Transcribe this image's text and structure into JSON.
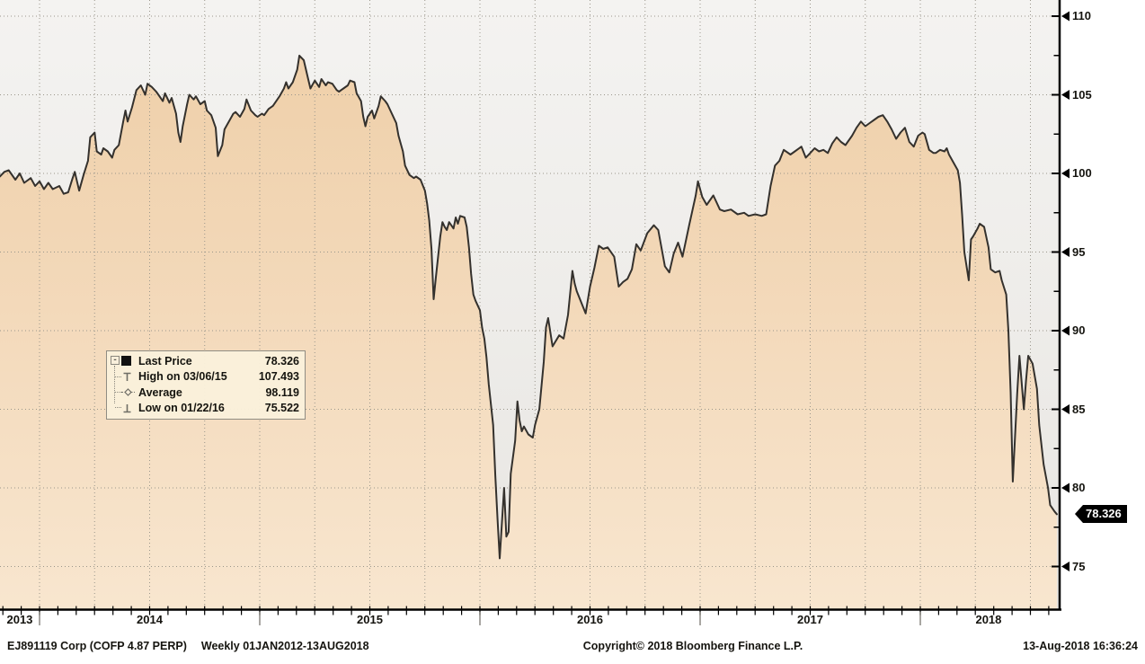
{
  "window": {
    "app": "Bloomberg chart"
  },
  "chart": {
    "security": "EJ891119 Corp (COFP 4.87 PERP)",
    "period_text": "Weekly 01JAN2012-13AUG2018",
    "last_price_label": "78.326",
    "y_axis": {
      "min": 75,
      "max": 110,
      "major_step": 5,
      "minor_step": 2.5,
      "tick_labels": [
        "110",
        "105",
        "100",
        "95",
        "90",
        "85",
        "80",
        "75"
      ]
    },
    "x_axis": {
      "year_labels": [
        {
          "label": "2013",
          "center": 2013.91
        },
        {
          "label": "2014",
          "center": 2014.5
        },
        {
          "label": "2015",
          "center": 2015.5
        },
        {
          "label": "2016",
          "center": 2016.5
        },
        {
          "label": "2017",
          "center": 2017.5
        },
        {
          "label": "2018",
          "center": 2018.31
        }
      ],
      "boundaries": [
        2014,
        2015,
        2016,
        2017,
        2018
      ],
      "minor_ticks": "monthly",
      "gridlines": "quarterly"
    },
    "legend": {
      "collapse_glyph": "-",
      "rows": [
        {
          "icon": "last-price-swatch",
          "label": "Last Price",
          "value": "78.326"
        },
        {
          "icon": "high-marker",
          "label": "High on 03/06/15",
          "value": "107.493"
        },
        {
          "icon": "average-marker",
          "label": "Average",
          "value": "98.119"
        },
        {
          "icon": "low-marker",
          "label": "Low on 01/22/16",
          "value": "75.522"
        }
      ]
    },
    "footer": {
      "copyright": "Copyright© 2018 Bloomberg Finance L.P.",
      "timestamp": "13-Aug-2018 16:36:24"
    }
  },
  "colors": {
    "area_top": "#efd0aa",
    "area_mid": "#f3d9ba",
    "area_bottom": "#f8e6cf",
    "line": "#34312d",
    "plot_bg_top": "#f4f3f1",
    "plot_bg_bottom": "#e8e6e2",
    "grid": "#9a968b",
    "axis": "#000000",
    "price_tag_bg": "#000000",
    "price_tag_text": "#ffffff",
    "legend_bg": "#f9efdb",
    "legend_border": "#8f8c83",
    "marker_gray": "#6f6e66",
    "text": "#15140f"
  },
  "chart_data": {
    "type": "area",
    "title": "",
    "series_name": "Last Price",
    "x_unit": "decimal_year",
    "xlim": [
      2013.82,
      2018.63
    ],
    "ylim": [
      74,
      110.5
    ],
    "y_ticks": [
      75,
      80,
      85,
      90,
      95,
      100,
      105,
      110
    ],
    "grid": "dotted",
    "legend_position": "left-middle",
    "stats": {
      "last": 78.326,
      "high": {
        "date": "03/06/15",
        "value": 107.493
      },
      "average": 98.119,
      "low": {
        "date": "01/22/16",
        "value": 75.522
      }
    },
    "points": [
      [
        2013.82,
        99.8
      ],
      [
        2013.84,
        100.1
      ],
      [
        2013.86,
        100.2
      ],
      [
        2013.89,
        99.6
      ],
      [
        2013.91,
        100.0
      ],
      [
        2013.93,
        99.4
      ],
      [
        2013.96,
        99.7
      ],
      [
        2013.98,
        99.2
      ],
      [
        2014.0,
        99.5
      ],
      [
        2014.02,
        99.0
      ],
      [
        2014.04,
        99.4
      ],
      [
        2014.06,
        99.0
      ],
      [
        2014.09,
        99.2
      ],
      [
        2014.11,
        98.7
      ],
      [
        2014.13,
        98.8
      ],
      [
        2014.15,
        99.7
      ],
      [
        2014.16,
        100.1
      ],
      [
        2014.18,
        98.9
      ],
      [
        2014.2,
        99.9
      ],
      [
        2014.22,
        100.8
      ],
      [
        2014.23,
        102.3
      ],
      [
        2014.25,
        102.6
      ],
      [
        2014.26,
        101.4
      ],
      [
        2014.28,
        101.2
      ],
      [
        2014.29,
        101.6
      ],
      [
        2014.31,
        101.4
      ],
      [
        2014.33,
        101.0
      ],
      [
        2014.34,
        101.5
      ],
      [
        2014.36,
        101.8
      ],
      [
        2014.38,
        103.3
      ],
      [
        2014.39,
        104.0
      ],
      [
        2014.4,
        103.3
      ],
      [
        2014.42,
        104.2
      ],
      [
        2014.44,
        105.3
      ],
      [
        2014.46,
        105.6
      ],
      [
        2014.48,
        105.0
      ],
      [
        2014.49,
        105.7
      ],
      [
        2014.51,
        105.5
      ],
      [
        2014.53,
        105.2
      ],
      [
        2014.54,
        105.0
      ],
      [
        2014.56,
        104.6
      ],
      [
        2014.57,
        105.1
      ],
      [
        2014.59,
        104.5
      ],
      [
        2014.6,
        104.8
      ],
      [
        2014.62,
        103.8
      ],
      [
        2014.63,
        102.6
      ],
      [
        2014.64,
        102.0
      ],
      [
        2014.65,
        103.0
      ],
      [
        2014.67,
        104.4
      ],
      [
        2014.68,
        105.0
      ],
      [
        2014.7,
        104.7
      ],
      [
        2014.71,
        104.9
      ],
      [
        2014.73,
        104.4
      ],
      [
        2014.75,
        104.6
      ],
      [
        2014.76,
        104.0
      ],
      [
        2014.78,
        103.7
      ],
      [
        2014.8,
        102.9
      ],
      [
        2014.81,
        101.1
      ],
      [
        2014.83,
        101.8
      ],
      [
        2014.84,
        102.8
      ],
      [
        2014.86,
        103.3
      ],
      [
        2014.88,
        103.8
      ],
      [
        2014.89,
        103.9
      ],
      [
        2014.91,
        103.6
      ],
      [
        2014.93,
        104.1
      ],
      [
        2014.94,
        104.7
      ],
      [
        2014.96,
        104.0
      ],
      [
        2014.98,
        103.7
      ],
      [
        2014.99,
        103.6
      ],
      [
        2015.01,
        103.8
      ],
      [
        2015.02,
        103.7
      ],
      [
        2015.04,
        104.1
      ],
      [
        2015.06,
        104.3
      ],
      [
        2015.07,
        104.5
      ],
      [
        2015.09,
        104.9
      ],
      [
        2015.11,
        105.4
      ],
      [
        2015.12,
        105.8
      ],
      [
        2015.13,
        105.4
      ],
      [
        2015.15,
        105.8
      ],
      [
        2015.17,
        106.6
      ],
      [
        2015.18,
        107.49
      ],
      [
        2015.2,
        107.2
      ],
      [
        2015.22,
        106.0
      ],
      [
        2015.23,
        105.4
      ],
      [
        2015.25,
        105.9
      ],
      [
        2015.27,
        105.5
      ],
      [
        2015.28,
        106.0
      ],
      [
        2015.3,
        105.6
      ],
      [
        2015.31,
        105.8
      ],
      [
        2015.33,
        105.7
      ],
      [
        2015.35,
        105.3
      ],
      [
        2015.36,
        105.2
      ],
      [
        2015.38,
        105.4
      ],
      [
        2015.4,
        105.6
      ],
      [
        2015.41,
        105.9
      ],
      [
        2015.43,
        105.8
      ],
      [
        2015.44,
        105.1
      ],
      [
        2015.46,
        104.6
      ],
      [
        2015.47,
        103.6
      ],
      [
        2015.48,
        103.0
      ],
      [
        2015.49,
        103.6
      ],
      [
        2015.51,
        104.0
      ],
      [
        2015.52,
        103.5
      ],
      [
        2015.54,
        104.3
      ],
      [
        2015.55,
        104.9
      ],
      [
        2015.57,
        104.6
      ],
      [
        2015.58,
        104.4
      ],
      [
        2015.6,
        103.8
      ],
      [
        2015.62,
        103.2
      ],
      [
        2015.63,
        102.4
      ],
      [
        2015.65,
        101.4
      ],
      [
        2015.66,
        100.5
      ],
      [
        2015.68,
        99.9
      ],
      [
        2015.7,
        99.7
      ],
      [
        2015.71,
        99.8
      ],
      [
        2015.73,
        99.6
      ],
      [
        2015.75,
        98.9
      ],
      [
        2015.76,
        98.1
      ],
      [
        2015.77,
        97.0
      ],
      [
        2015.78,
        95.2
      ],
      [
        2015.79,
        92.0
      ],
      [
        2015.8,
        93.4
      ],
      [
        2015.82,
        96.0
      ],
      [
        2015.83,
        96.9
      ],
      [
        2015.84,
        96.6
      ],
      [
        2015.85,
        96.4
      ],
      [
        2015.86,
        96.9
      ],
      [
        2015.88,
        96.5
      ],
      [
        2015.89,
        97.2
      ],
      [
        2015.9,
        96.8
      ],
      [
        2015.91,
        97.3
      ],
      [
        2015.93,
        97.2
      ],
      [
        2015.94,
        96.6
      ],
      [
        2015.95,
        95.3
      ],
      [
        2015.96,
        93.6
      ],
      [
        2015.97,
        92.3
      ],
      [
        2015.98,
        91.9
      ],
      [
        2016.0,
        91.3
      ],
      [
        2016.01,
        90.2
      ],
      [
        2016.02,
        89.5
      ],
      [
        2016.03,
        88.3
      ],
      [
        2016.04,
        86.6
      ],
      [
        2016.06,
        84.0
      ],
      [
        2016.07,
        80.8
      ],
      [
        2016.08,
        78.0
      ],
      [
        2016.09,
        75.52
      ],
      [
        2016.11,
        80.0
      ],
      [
        2016.12,
        76.9
      ],
      [
        2016.13,
        77.2
      ],
      [
        2016.14,
        80.9
      ],
      [
        2016.16,
        83.0
      ],
      [
        2016.17,
        85.5
      ],
      [
        2016.18,
        84.3
      ],
      [
        2016.19,
        83.6
      ],
      [
        2016.2,
        83.9
      ],
      [
        2016.22,
        83.4
      ],
      [
        2016.24,
        83.2
      ],
      [
        2016.25,
        84.0
      ],
      [
        2016.27,
        85.0
      ],
      [
        2016.29,
        88.0
      ],
      [
        2016.3,
        90.2
      ],
      [
        2016.31,
        90.8
      ],
      [
        2016.33,
        89.0
      ],
      [
        2016.36,
        89.7
      ],
      [
        2016.38,
        89.5
      ],
      [
        2016.4,
        91.0
      ],
      [
        2016.42,
        93.8
      ],
      [
        2016.43,
        93.0
      ],
      [
        2016.44,
        92.5
      ],
      [
        2016.46,
        91.8
      ],
      [
        2016.48,
        91.1
      ],
      [
        2016.5,
        92.8
      ],
      [
        2016.52,
        94.0
      ],
      [
        2016.54,
        95.4
      ],
      [
        2016.56,
        95.2
      ],
      [
        2016.58,
        95.3
      ],
      [
        2016.61,
        94.7
      ],
      [
        2016.63,
        92.8
      ],
      [
        2016.65,
        93.1
      ],
      [
        2016.67,
        93.3
      ],
      [
        2016.69,
        93.9
      ],
      [
        2016.71,
        95.5
      ],
      [
        2016.73,
        95.1
      ],
      [
        2016.76,
        96.2
      ],
      [
        2016.79,
        96.7
      ],
      [
        2016.81,
        96.4
      ],
      [
        2016.84,
        94.1
      ],
      [
        2016.86,
        93.7
      ],
      [
        2016.88,
        94.9
      ],
      [
        2016.9,
        95.6
      ],
      [
        2016.92,
        94.7
      ],
      [
        2016.95,
        96.7
      ],
      [
        2016.98,
        98.6
      ],
      [
        2016.99,
        99.5
      ],
      [
        2017.01,
        98.5
      ],
      [
        2017.03,
        98.0
      ],
      [
        2017.06,
        98.6
      ],
      [
        2017.09,
        97.7
      ],
      [
        2017.11,
        97.6
      ],
      [
        2017.14,
        97.7
      ],
      [
        2017.17,
        97.4
      ],
      [
        2017.2,
        97.5
      ],
      [
        2017.22,
        97.3
      ],
      [
        2017.25,
        97.4
      ],
      [
        2017.28,
        97.3
      ],
      [
        2017.3,
        97.4
      ],
      [
        2017.32,
        99.2
      ],
      [
        2017.34,
        100.5
      ],
      [
        2017.36,
        100.8
      ],
      [
        2017.38,
        101.5
      ],
      [
        2017.41,
        101.2
      ],
      [
        2017.43,
        101.4
      ],
      [
        2017.46,
        101.7
      ],
      [
        2017.48,
        101.0
      ],
      [
        2017.5,
        101.3
      ],
      [
        2017.52,
        101.6
      ],
      [
        2017.54,
        101.4
      ],
      [
        2017.56,
        101.5
      ],
      [
        2017.58,
        101.3
      ],
      [
        2017.6,
        101.9
      ],
      [
        2017.62,
        102.3
      ],
      [
        2017.64,
        102.0
      ],
      [
        2017.66,
        101.8
      ],
      [
        2017.69,
        102.4
      ],
      [
        2017.71,
        102.9
      ],
      [
        2017.73,
        103.3
      ],
      [
        2017.75,
        103.0
      ],
      [
        2017.77,
        103.2
      ],
      [
        2017.79,
        103.4
      ],
      [
        2017.81,
        103.6
      ],
      [
        2017.83,
        103.7
      ],
      [
        2017.85,
        103.3
      ],
      [
        2017.87,
        102.8
      ],
      [
        2017.89,
        102.2
      ],
      [
        2017.91,
        102.6
      ],
      [
        2017.93,
        102.9
      ],
      [
        2017.95,
        102.0
      ],
      [
        2017.97,
        101.7
      ],
      [
        2017.99,
        102.4
      ],
      [
        2018.01,
        102.6
      ],
      [
        2018.02,
        102.5
      ],
      [
        2018.04,
        101.5
      ],
      [
        2018.06,
        101.3
      ],
      [
        2018.07,
        101.3
      ],
      [
        2018.09,
        101.5
      ],
      [
        2018.11,
        101.4
      ],
      [
        2018.12,
        101.6
      ],
      [
        2018.13,
        101.2
      ],
      [
        2018.15,
        100.7
      ],
      [
        2018.17,
        100.2
      ],
      [
        2018.18,
        99.4
      ],
      [
        2018.19,
        97.3
      ],
      [
        2018.2,
        95.0
      ],
      [
        2018.22,
        93.2
      ],
      [
        2018.23,
        95.8
      ],
      [
        2018.24,
        96.0
      ],
      [
        2018.26,
        96.5
      ],
      [
        2018.27,
        96.8
      ],
      [
        2018.29,
        96.6
      ],
      [
        2018.31,
        95.3
      ],
      [
        2018.32,
        93.9
      ],
      [
        2018.34,
        93.7
      ],
      [
        2018.36,
        93.8
      ],
      [
        2018.37,
        93.2
      ],
      [
        2018.39,
        92.3
      ],
      [
        2018.4,
        90.0
      ],
      [
        2018.41,
        86.1
      ],
      [
        2018.42,
        80.4
      ],
      [
        2018.44,
        86.0
      ],
      [
        2018.45,
        88.4
      ],
      [
        2018.47,
        85.0
      ],
      [
        2018.48,
        86.8
      ],
      [
        2018.49,
        88.4
      ],
      [
        2018.51,
        87.9
      ],
      [
        2018.53,
        86.3
      ],
      [
        2018.54,
        84.0
      ],
      [
        2018.56,
        81.5
      ],
      [
        2018.58,
        80.0
      ],
      [
        2018.59,
        78.9
      ],
      [
        2018.61,
        78.5
      ],
      [
        2018.62,
        78.326
      ]
    ]
  }
}
